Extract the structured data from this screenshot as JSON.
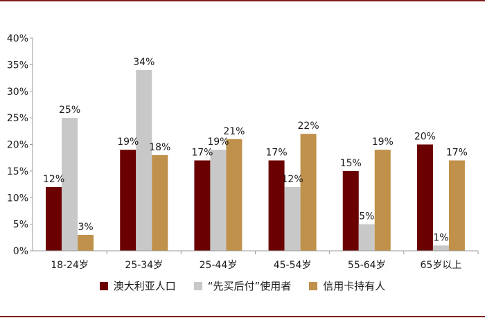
{
  "chart_data": {
    "type": "bar",
    "categories": [
      "18-24岁",
      "25-34岁",
      "25-44岁",
      "45-54岁",
      "55-64岁",
      "65岁以上"
    ],
    "series": [
      {
        "name": "澳大利亚人口",
        "values": [
          12,
          19,
          17,
          17,
          15,
          20
        ],
        "color": "#6b0000"
      },
      {
        "name": "“先买后付”使用者",
        "values": [
          25,
          34,
          19,
          12,
          5,
          1
        ],
        "color": "#c8c8c8"
      },
      {
        "name": "信用卡持有人",
        "values": [
          3,
          18,
          21,
          22,
          19,
          17
        ],
        "color": "#c0914b"
      }
    ],
    "yticks": [
      "0%",
      "5%",
      "10%",
      "15%",
      "20%",
      "25%",
      "30%",
      "35%",
      "40%"
    ],
    "ylim": [
      0,
      40
    ],
    "value_suffix": "%",
    "legend_position": "bottom"
  }
}
